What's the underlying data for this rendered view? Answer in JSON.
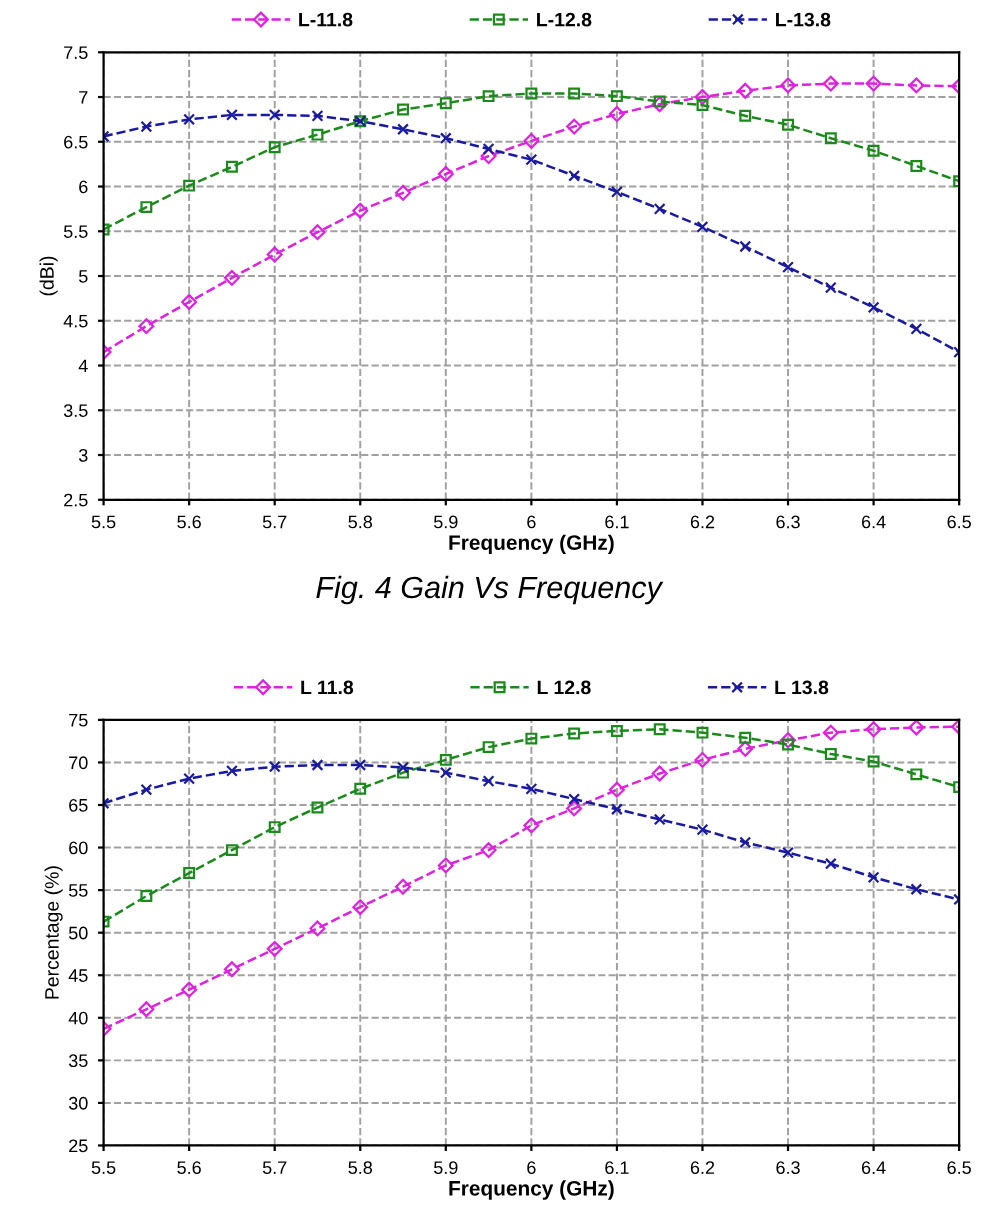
{
  "chart_data": [
    {
      "type": "line",
      "xlabel": "Frequency (GHz)",
      "ylabel": "(dBi)",
      "annotations": [
        "Fig. 4 Gain Vs Frequency"
      ],
      "x": [
        5.5,
        5.55,
        5.6,
        5.65,
        5.7,
        5.75,
        5.8,
        5.85,
        5.9,
        5.95,
        6.0,
        6.05,
        6.1,
        6.15,
        6.2,
        6.25,
        6.3,
        6.35,
        6.4,
        6.45,
        6.5
      ],
      "series": [
        {
          "name": "L-11.8",
          "color": "#e020e0",
          "marker": "diamond",
          "values": [
            4.15,
            4.44,
            4.71,
            4.98,
            5.24,
            5.49,
            5.73,
            5.93,
            6.14,
            6.34,
            6.51,
            6.67,
            6.81,
            6.92,
            7.0,
            7.07,
            7.13,
            7.15,
            7.15,
            7.13,
            7.12
          ]
        },
        {
          "name": "L-12.8",
          "color": "#1a8a1a",
          "marker": "square",
          "values": [
            5.52,
            5.77,
            6.01,
            6.22,
            6.44,
            6.58,
            6.73,
            6.86,
            6.93,
            7.01,
            7.04,
            7.04,
            7.01,
            6.95,
            6.91,
            6.79,
            6.69,
            6.54,
            6.4,
            6.23,
            6.06
          ]
        },
        {
          "name": "L-13.8",
          "color": "#1a1aa0",
          "marker": "cross",
          "values": [
            6.56,
            6.67,
            6.75,
            6.8,
            6.8,
            6.79,
            6.73,
            6.64,
            6.54,
            6.42,
            6.3,
            6.12,
            5.94,
            5.75,
            5.55,
            5.33,
            5.1,
            4.87,
            4.65,
            4.41,
            4.15
          ]
        }
      ],
      "xlim": [
        5.5,
        6.5
      ],
      "xticks": [
        5.5,
        5.6,
        5.7,
        5.8,
        5.9,
        6,
        6.1,
        6.2,
        6.3,
        6.4,
        6.5
      ],
      "ylim": [
        2.5,
        7.5
      ],
      "yticks": [
        2.5,
        3,
        3.5,
        4,
        4.5,
        5,
        5.5,
        6,
        6.5,
        7,
        7.5
      ],
      "grid": true,
      "legend": "top",
      "line_style": "dashed"
    },
    {
      "type": "line",
      "xlabel": "Frequency (GHz)",
      "ylabel": "Percentage (%)",
      "x": [
        5.5,
        5.55,
        5.6,
        5.65,
        5.7,
        5.75,
        5.8,
        5.85,
        5.9,
        5.95,
        6.0,
        6.05,
        6.1,
        6.15,
        6.2,
        6.25,
        6.3,
        6.35,
        6.4,
        6.45,
        6.5
      ],
      "series": [
        {
          "name": "L 11.8",
          "color": "#e020e0",
          "marker": "diamond",
          "values": [
            38.7,
            41.0,
            43.3,
            45.7,
            48.1,
            50.5,
            53.0,
            55.4,
            57.9,
            59.7,
            62.6,
            64.6,
            66.8,
            68.7,
            70.3,
            71.6,
            72.6,
            73.5,
            73.9,
            74.1,
            74.2
          ]
        },
        {
          "name": "L 12.8",
          "color": "#1a8a1a",
          "marker": "square",
          "values": [
            51.3,
            54.3,
            57.0,
            59.7,
            62.4,
            64.7,
            66.9,
            68.8,
            70.3,
            71.8,
            72.8,
            73.4,
            73.7,
            73.9,
            73.5,
            72.9,
            72.1,
            71.0,
            70.1,
            68.6,
            67.1
          ]
        },
        {
          "name": "L 13.8",
          "color": "#1a1aa0",
          "marker": "cross",
          "values": [
            65.2,
            66.8,
            68.1,
            69.0,
            69.5,
            69.7,
            69.7,
            69.4,
            68.8,
            67.8,
            66.9,
            65.7,
            64.5,
            63.3,
            62.1,
            60.6,
            59.4,
            58.1,
            56.5,
            55.1,
            53.9
          ]
        }
      ],
      "xlim": [
        5.5,
        6.5
      ],
      "xticks": [
        5.5,
        5.6,
        5.7,
        5.8,
        5.9,
        6,
        6.1,
        6.2,
        6.3,
        6.4,
        6.5
      ],
      "ylim": [
        25,
        75
      ],
      "yticks": [
        25,
        30,
        35,
        40,
        45,
        50,
        55,
        60,
        65,
        70,
        75
      ],
      "grid": true,
      "legend": "top",
      "line_style": "dashed"
    }
  ]
}
